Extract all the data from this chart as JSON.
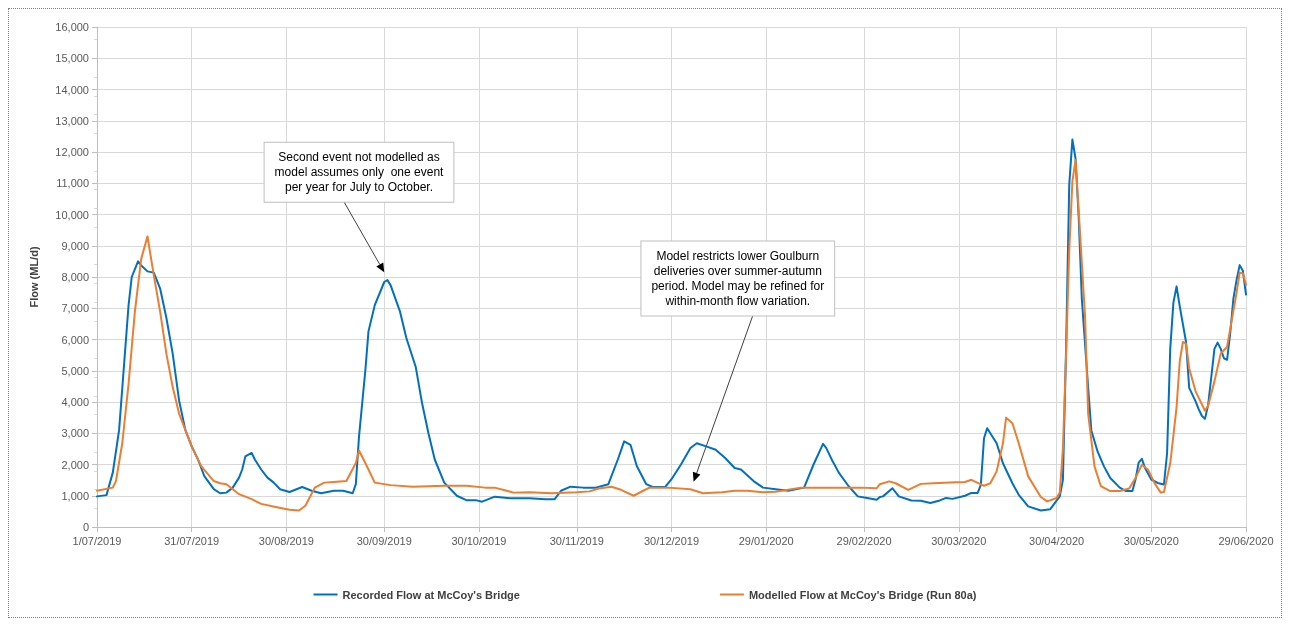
{
  "chart_data": {
    "type": "line",
    "ylabel": "Flow (ML/d)",
    "xlim": [
      "2019-07-01",
      "2020-06-29"
    ],
    "xticks": [
      {
        "value": "2019-07-01",
        "label": "1/07/2019"
      },
      {
        "value": "2019-07-31",
        "label": "31/07/2019"
      },
      {
        "value": "2019-08-30",
        "label": "30/08/2019"
      },
      {
        "value": "2019-09-30",
        "label": "30/09/2019"
      },
      {
        "value": "2019-10-30",
        "label": "30/10/2019"
      },
      {
        "value": "2019-11-30",
        "label": "30/11/2019"
      },
      {
        "value": "2019-12-30",
        "label": "30/12/2019"
      },
      {
        "value": "2020-01-29",
        "label": "29/01/2020"
      },
      {
        "value": "2020-02-29",
        "label": "29/02/2020"
      },
      {
        "value": "2020-03-30",
        "label": "30/03/2020"
      },
      {
        "value": "2020-04-30",
        "label": "30/04/2020"
      },
      {
        "value": "2020-05-30",
        "label": "30/05/2020"
      },
      {
        "value": "2020-06-29",
        "label": "29/06/2020"
      }
    ],
    "ylim": [
      0,
      16000
    ],
    "yticks": [
      0,
      {
        "value": 1000,
        "label": "1,000"
      },
      {
        "value": 2000,
        "label": "2,000"
      },
      {
        "value": 3000,
        "label": "3,000"
      },
      {
        "value": 4000,
        "label": "4,000"
      },
      {
        "value": 5000,
        "label": "5,000"
      },
      {
        "value": 6000,
        "label": "6,000"
      },
      {
        "value": 7000,
        "label": "7,000"
      },
      {
        "value": 8000,
        "label": "8,000"
      },
      {
        "value": 9000,
        "label": "9,000"
      },
      {
        "value": 10000,
        "label": "10,000"
      },
      {
        "value": 11000,
        "label": "11,000"
      },
      {
        "value": 12000,
        "label": "12,000"
      },
      {
        "value": 13000,
        "label": "13,000"
      },
      {
        "value": 14000,
        "label": "14,000"
      },
      {
        "value": 15000,
        "label": "15,000"
      },
      {
        "value": 16000,
        "label": "16,000"
      }
    ],
    "grid": true,
    "legend": "bottom",
    "marker": "none",
    "line_style": "solid",
    "annotations": [
      "Second event not modelled as model assumes only  one event per year for July to October.",
      "Model restricts lower Goulburn deliveries over summer-autumn period. Model may be refined for within-month flow variation."
    ],
    "series": [
      {
        "name": "Recorded Flow at McCoy's Bridge",
        "color": "#0070c0",
        "x": [
          "2019-07-01",
          "2019-07-04",
          "2019-07-06",
          "2019-07-08",
          "2019-07-11",
          "2019-07-12",
          "2019-07-14",
          "2019-07-15",
          "2019-07-17",
          "2019-07-19",
          "2019-07-21",
          "2019-07-23",
          "2019-07-25",
          "2019-07-27",
          "2019-07-29",
          "2019-07-31",
          "2019-08-02",
          "2019-08-04",
          "2019-08-07",
          "2019-08-09",
          "2019-08-11",
          "2019-08-13",
          "2019-08-15",
          "2019-08-16",
          "2019-08-17",
          "2019-08-19",
          "2019-08-20",
          "2019-08-22",
          "2019-08-24",
          "2019-08-26",
          "2019-08-28",
          "2019-08-31",
          "2019-09-04",
          "2019-09-07",
          "2019-09-10",
          "2019-09-14",
          "2019-09-17",
          "2019-09-20",
          "2019-09-21",
          "2019-09-22",
          "2019-09-24",
          "2019-09-25",
          "2019-09-27",
          "2019-09-30",
          "2019-10-01",
          "2019-10-02",
          "2019-10-05",
          "2019-10-07",
          "2019-10-10",
          "2019-10-12",
          "2019-10-14",
          "2019-10-16",
          "2019-10-19",
          "2019-10-23",
          "2019-10-26",
          "2019-10-29",
          "2019-10-31",
          "2019-11-04",
          "2019-11-09",
          "2019-11-15",
          "2019-11-20",
          "2019-11-23",
          "2019-11-25",
          "2019-11-28",
          "2019-12-02",
          "2019-12-06",
          "2019-12-10",
          "2019-12-13",
          "2019-12-15",
          "2019-12-17",
          "2019-12-19",
          "2019-12-22",
          "2019-12-24",
          "2019-12-28",
          "2019-12-30",
          "2020-01-02",
          "2020-01-05",
          "2020-01-07",
          "2020-01-10",
          "2020-01-13",
          "2020-01-16",
          "2020-01-19",
          "2020-01-21",
          "2020-01-25",
          "2020-01-28",
          "2020-02-01",
          "2020-02-05",
          "2020-02-10",
          "2020-02-13",
          "2020-02-16",
          "2020-02-17",
          "2020-02-19",
          "2020-02-21",
          "2020-02-24",
          "2020-02-27",
          "2020-03-01",
          "2020-03-04",
          "2020-03-05",
          "2020-03-06",
          "2020-03-09",
          "2020-03-11",
          "2020-03-15",
          "2020-03-18",
          "2020-03-21",
          "2020-03-24",
          "2020-03-26",
          "2020-03-28",
          "2020-04-01",
          "2020-04-03",
          "2020-04-05",
          "2020-04-06",
          "2020-04-07",
          "2020-04-08",
          "2020-04-11",
          "2020-04-13",
          "2020-04-16",
          "2020-04-18",
          "2020-04-21",
          "2020-04-25",
          "2020-04-28",
          "2020-04-29",
          "2020-05-01",
          "2020-05-02",
          "2020-05-03",
          "2020-05-04",
          "2020-05-05",
          "2020-05-06",
          "2020-05-07",
          "2020-05-08",
          "2020-05-10",
          "2020-05-11",
          "2020-05-13",
          "2020-05-15",
          "2020-05-17",
          "2020-05-20",
          "2020-05-22",
          "2020-05-24",
          "2020-05-25",
          "2020-05-26",
          "2020-05-27",
          "2020-05-28",
          "2020-05-30",
          "2020-06-01",
          "2020-06-03",
          "2020-06-04",
          "2020-06-05",
          "2020-06-06",
          "2020-06-07",
          "2020-06-08",
          "2020-06-10",
          "2020-06-11",
          "2020-06-13",
          "2020-06-14",
          "2020-06-15",
          "2020-06-16",
          "2020-06-17",
          "2020-06-18",
          "2020-06-19",
          "2020-06-20",
          "2020-06-21",
          "2020-06-22",
          "2020-06-23",
          "2020-06-24",
          "2020-06-25",
          "2020-06-26",
          "2020-06-27",
          "2020-06-28",
          "2020-06-29"
        ],
        "values": [
          980,
          1020,
          1740,
          3100,
          7100,
          8000,
          8500,
          8370,
          8180,
          8140,
          7630,
          6680,
          5530,
          4050,
          3100,
          2580,
          2160,
          1630,
          1210,
          1080,
          1100,
          1260,
          1580,
          1840,
          2260,
          2370,
          2160,
          1840,
          1580,
          1420,
          1210,
          1120,
          1280,
          1160,
          1080,
          1160,
          1160,
          1080,
          1370,
          2890,
          5000,
          6260,
          7100,
          7840,
          7900,
          7740,
          6890,
          6050,
          5110,
          3950,
          3000,
          2160,
          1420,
          1000,
          860,
          860,
          810,
          970,
          920,
          920,
          890,
          890,
          1160,
          1290,
          1260,
          1260,
          1370,
          2160,
          2740,
          2630,
          1950,
          1370,
          1280,
          1280,
          1530,
          2000,
          2530,
          2680,
          2580,
          2470,
          2210,
          1890,
          1840,
          1470,
          1260,
          1210,
          1160,
          1260,
          2000,
          2660,
          2530,
          2110,
          1740,
          1320,
          980,
          930,
          870,
          960,
          980,
          1240,
          980,
          850,
          840,
          770,
          850,
          930,
          900,
          1000,
          1090,
          1090,
          1350,
          2840,
          3160,
          2680,
          2040,
          1400,
          1030,
          660,
          530,
          570,
          710,
          980,
          1510,
          5710,
          10950,
          12400,
          11790,
          9900,
          7280,
          4450,
          3090,
          2410,
          1940,
          1570,
          1260,
          1150,
          1150,
          1520,
          2060,
          2180,
          1890,
          1520,
          1410,
          1360,
          2360,
          5710,
          7180,
          7700,
          7070,
          5920,
          4450,
          4030,
          3770,
          3560,
          3460,
          3900,
          4800,
          5700,
          5900,
          5700,
          5400,
          5350,
          6200,
          7300,
          7900,
          8380,
          8200,
          7440
        ]
      },
      {
        "name": "Modelled Flow at McCoy's Bridge (Run 80a)",
        "color": "#ed7d31",
        "x": [
          "2019-07-01",
          "2019-07-06",
          "2019-07-07",
          "2019-07-09",
          "2019-07-11",
          "2019-07-13",
          "2019-07-15",
          "2019-07-17",
          "2019-07-19",
          "2019-07-21",
          "2019-07-23",
          "2019-07-25",
          "2019-07-27",
          "2019-07-29",
          "2019-07-31",
          "2019-08-03",
          "2019-08-07",
          "2019-08-09",
          "2019-08-11",
          "2019-08-13",
          "2019-08-15",
          "2019-08-19",
          "2019-08-22",
          "2019-08-27",
          "2019-08-31",
          "2019-09-03",
          "2019-09-05",
          "2019-09-08",
          "2019-09-11",
          "2019-09-15",
          "2019-09-18",
          "2019-09-21",
          "2019-09-22",
          "2019-09-24",
          "2019-09-27",
          "2019-10-02",
          "2019-10-09",
          "2019-10-19",
          "2019-10-26",
          "2019-11-01",
          "2019-11-04",
          "2019-11-10",
          "2019-11-15",
          "2019-11-22",
          "2019-11-30",
          "2019-12-04",
          "2019-12-07",
          "2019-12-11",
          "2019-12-14",
          "2019-12-18",
          "2019-12-21",
          "2019-12-23",
          "2019-12-29",
          "2020-01-05",
          "2020-01-09",
          "2020-01-15",
          "2020-01-19",
          "2020-01-23",
          "2020-01-28",
          "2020-02-01",
          "2020-02-09",
          "2020-02-17",
          "2020-02-28",
          "2020-03-04",
          "2020-03-05",
          "2020-03-08",
          "2020-03-10",
          "2020-03-14",
          "2020-03-18",
          "2020-03-22",
          "2020-03-29",
          "2020-04-01",
          "2020-04-03",
          "2020-04-04",
          "2020-04-07",
          "2020-04-09",
          "2020-04-11",
          "2020-04-13",
          "2020-04-14",
          "2020-04-16",
          "2020-04-18",
          "2020-04-21",
          "2020-04-25",
          "2020-04-27",
          "2020-04-30",
          "2020-05-01",
          "2020-05-02",
          "2020-05-03",
          "2020-05-04",
          "2020-05-05",
          "2020-05-06",
          "2020-05-07",
          "2020-05-09",
          "2020-05-10",
          "2020-05-12",
          "2020-05-14",
          "2020-05-17",
          "2020-05-20",
          "2020-05-23",
          "2020-05-25",
          "2020-05-27",
          "2020-05-29",
          "2020-05-31",
          "2020-06-02",
          "2020-06-03",
          "2020-06-05",
          "2020-06-07",
          "2020-06-08",
          "2020-06-09",
          "2020-06-10",
          "2020-06-11",
          "2020-06-13",
          "2020-06-16",
          "2020-06-17",
          "2020-06-19",
          "2020-06-21",
          "2020-06-23",
          "2020-06-24",
          "2020-06-26",
          "2020-06-27",
          "2020-06-28",
          "2020-06-29"
        ],
        "values": [
          1160,
          1260,
          1470,
          2680,
          4580,
          6890,
          8580,
          9300,
          8050,
          6890,
          5530,
          4470,
          3630,
          3100,
          2580,
          1950,
          1470,
          1400,
          1370,
          1210,
          1050,
          890,
          740,
          630,
          550,
          530,
          680,
          1260,
          1420,
          1450,
          1470,
          2050,
          2450,
          2050,
          1420,
          1340,
          1290,
          1320,
          1320,
          1260,
          1260,
          1100,
          1110,
          1080,
          1110,
          1140,
          1230,
          1290,
          1190,
          1000,
          1160,
          1260,
          1260,
          1210,
          1080,
          1110,
          1160,
          1160,
          1110,
          1130,
          1260,
          1260,
          1260,
          1240,
          1370,
          1460,
          1400,
          1190,
          1380,
          1400,
          1430,
          1440,
          1510,
          1460,
          1320,
          1400,
          1780,
          2680,
          3500,
          3320,
          2680,
          1620,
          960,
          820,
          930,
          1100,
          2500,
          5500,
          8860,
          11060,
          11740,
          10110,
          6760,
          3620,
          1940,
          1310,
          1150,
          1150,
          1230,
          1570,
          1990,
          1830,
          1410,
          1100,
          1120,
          2040,
          3830,
          5290,
          5920,
          5870,
          5080,
          4350,
          3720,
          3880,
          4660,
          5550,
          5760,
          6340,
          7490,
          8140,
          8120,
          7750
        ]
      }
    ]
  }
}
